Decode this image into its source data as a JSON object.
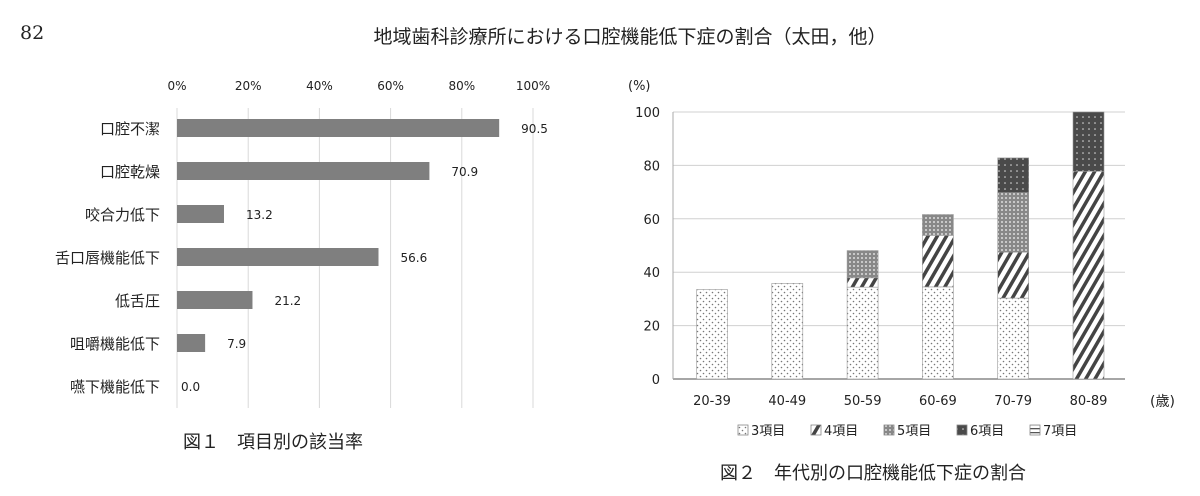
{
  "header": {
    "page_number": "82",
    "title": "地域歯科診療所における口腔機能低下症の割合（太田，他）"
  },
  "figure1": {
    "caption": "図１　項目別の該当率"
  },
  "figure2": {
    "caption": "図２　年代別の口腔機能低下症の割合"
  },
  "chart_data": [
    {
      "type": "bar",
      "orientation": "horizontal",
      "categories": [
        "口腔不潔",
        "口腔乾燥",
        "咬合力低下",
        "舌口唇機能低下",
        "低舌圧",
        "咀嚼機能低下",
        "嚥下機能低下"
      ],
      "values": [
        90.5,
        70.9,
        13.2,
        56.6,
        21.2,
        7.9,
        0.0
      ],
      "data_labels": [
        "90.5",
        "70.9",
        "13.2",
        "56.6",
        "21.2",
        "7.9",
        "0.0"
      ],
      "xlim": [
        0,
        100
      ],
      "x_ticks": [
        "0%",
        "20%",
        "40%",
        "60%",
        "80%",
        "100%"
      ],
      "x_axis_position": "top",
      "grid": true,
      "bar_color": "#7f7f7f"
    },
    {
      "type": "bar",
      "stacked": true,
      "categories": [
        "20-39",
        "40-49",
        "50-59",
        "60-69",
        "70-79",
        "80-89"
      ],
      "xlabel": "(歳)",
      "ylabel": "(%)",
      "ylim": [
        0,
        100
      ],
      "y_ticks": [
        "0",
        "20",
        "40",
        "60",
        "80",
        "100"
      ],
      "grid": true,
      "legend_position": "bottom",
      "series": [
        {
          "name": "3項目",
          "pattern": "light-dots",
          "values": [
            33.5,
            35.8,
            34.4,
            34.5,
            30.3,
            0
          ]
        },
        {
          "name": "4項目",
          "pattern": "diagonal-stripes",
          "values": [
            0,
            0,
            3.5,
            19.3,
            17.2,
            77.8
          ]
        },
        {
          "name": "5項目",
          "pattern": "crosshatch",
          "values": [
            0,
            0,
            10.2,
            7.8,
            22.3,
            0
          ]
        },
        {
          "name": "6項目",
          "pattern": "dark-dots",
          "values": [
            0,
            0,
            0,
            0,
            13.0,
            22.2
          ]
        },
        {
          "name": "7項目",
          "pattern": "horizontal-lines",
          "values": [
            0,
            0,
            0,
            0,
            0,
            0
          ]
        }
      ]
    }
  ]
}
